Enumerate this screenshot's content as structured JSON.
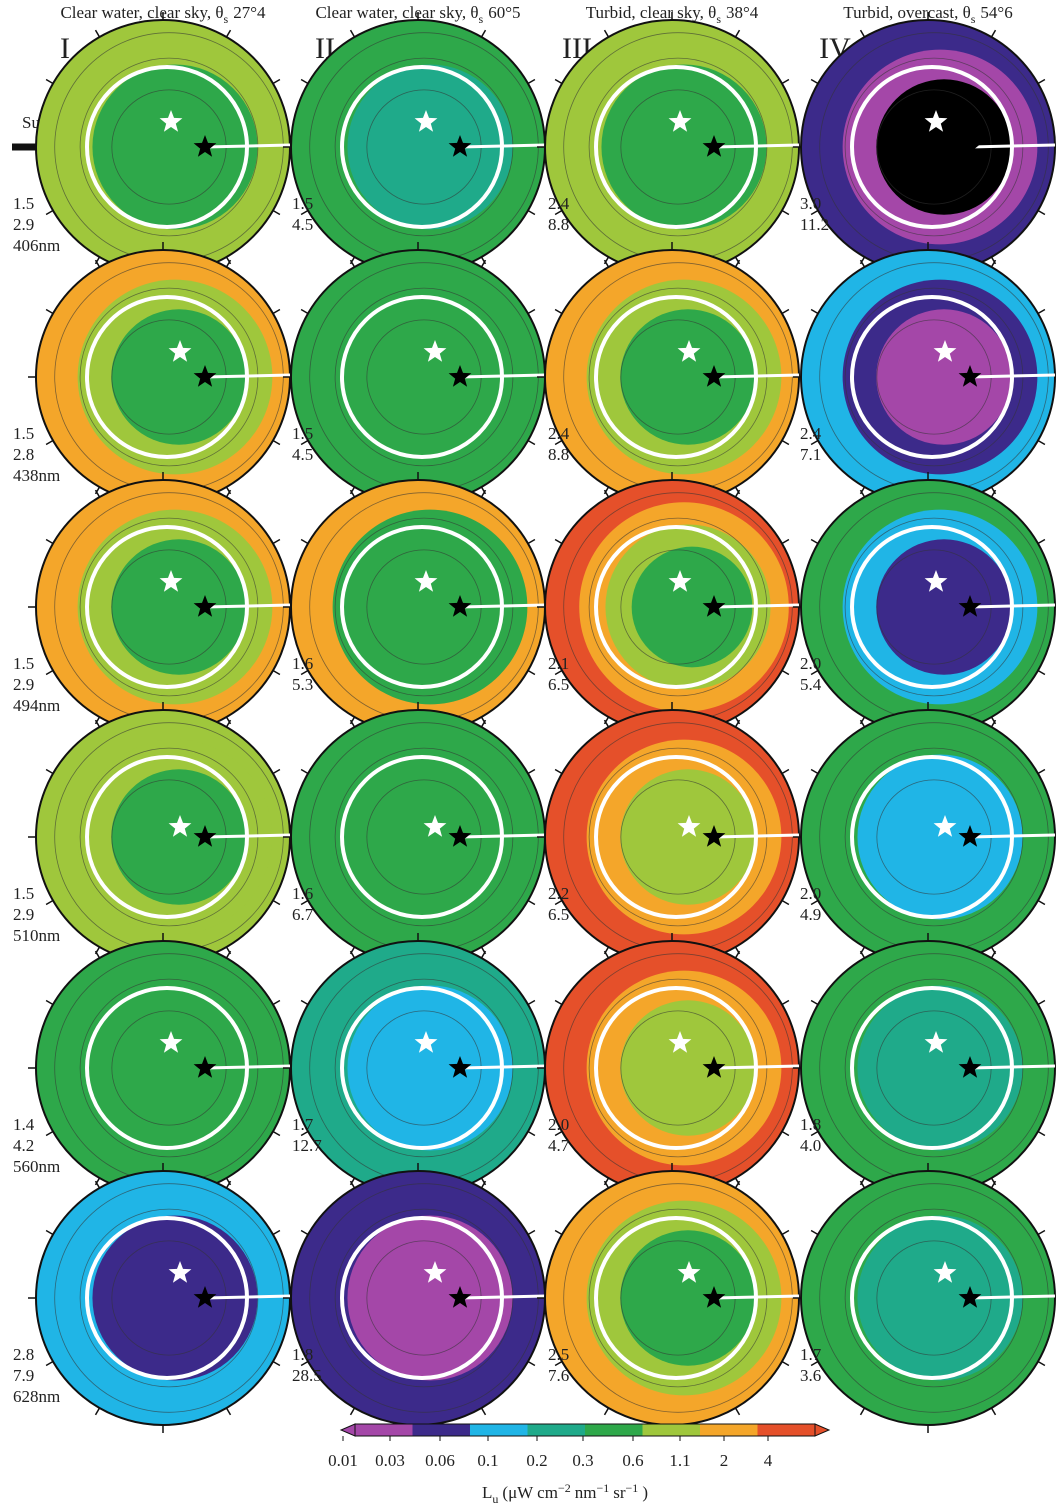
{
  "sun_label": "Sun",
  "wavelengths": [
    "406nm",
    "438nm",
    "494nm",
    "510nm",
    "560nm",
    "628nm"
  ],
  "columns": [
    {
      "numeral": "I",
      "title": {
        "pre": "Clear water, clear sky, θ",
        "sub": "s",
        "post": "27°4"
      },
      "panels": [
        {
          "values": [
            "1.5",
            "2.9"
          ],
          "colors": [
            "#9fc73c",
            "#2ea84a"
          ]
        },
        {
          "values": [
            "1.5",
            "2.8"
          ],
          "colors": [
            "#f4a62a",
            "#9fc73c",
            "#2ea84a"
          ]
        },
        {
          "values": [
            "1.5",
            "2.9"
          ],
          "colors": [
            "#f4a62a",
            "#9fc73c",
            "#2ea84a"
          ]
        },
        {
          "values": [
            "1.5",
            "2.9"
          ],
          "colors": [
            "#9fc73c",
            "#9fc73c",
            "#2ea84a"
          ]
        },
        {
          "values": [
            "1.4",
            "4.2"
          ],
          "colors": [
            "#2ea84a",
            "#2ea84a"
          ]
        },
        {
          "values": [
            "2.8",
            "7.9"
          ],
          "colors": [
            "#20b5e6",
            "#3c2a8a"
          ]
        }
      ]
    },
    {
      "numeral": "II",
      "title": {
        "pre": "Clear water, clear sky, θ",
        "sub": "s",
        "post": "60°5"
      },
      "panels": [
        {
          "values": [
            "1.5",
            "4.5"
          ],
          "colors": [
            "#2ea84a",
            "#1faa8a"
          ]
        },
        {
          "values": [
            "1.5",
            "4.5"
          ],
          "colors": [
            "#2ea84a",
            "#2ea84a"
          ]
        },
        {
          "values": [
            "1.6",
            "5.3"
          ],
          "colors": [
            "#f4a62a",
            "#2ea84a",
            "#2ea84a"
          ]
        },
        {
          "values": [
            "1.6",
            "6.7"
          ],
          "colors": [
            "#2ea84a",
            "#2ea84a"
          ]
        },
        {
          "values": [
            "1.7",
            "12.7"
          ],
          "colors": [
            "#1faa8a",
            "#20b5e6"
          ]
        },
        {
          "values": [
            "1.8",
            "28.5"
          ],
          "colors": [
            "#3c2a8a",
            "#a447a8"
          ]
        }
      ]
    },
    {
      "numeral": "III",
      "title": {
        "pre": "Turbid, clear sky, θ",
        "sub": "s",
        "post": "38°4"
      },
      "panels": [
        {
          "values": [
            "2.4",
            "8.8"
          ],
          "colors": [
            "#9fc73c",
            "#2ea84a"
          ]
        },
        {
          "values": [
            "2.4",
            "8.8"
          ],
          "colors": [
            "#f4a62a",
            "#9fc73c",
            "#2ea84a"
          ]
        },
        {
          "values": [
            "2.1",
            "6.5"
          ],
          "colors": [
            "#e5502a",
            "#f4a62a",
            "#9fc73c",
            "#2ea84a"
          ]
        },
        {
          "values": [
            "2.2",
            "6.5"
          ],
          "colors": [
            "#e5502a",
            "#f4a62a",
            "#9fc73c"
          ]
        },
        {
          "values": [
            "2.0",
            "4.7"
          ],
          "colors": [
            "#e5502a",
            "#f4a62a",
            "#9fc73c"
          ]
        },
        {
          "values": [
            "2.5",
            "7.6"
          ],
          "colors": [
            "#f4a62a",
            "#9fc73c",
            "#2ea84a"
          ]
        }
      ]
    },
    {
      "numeral": "IV",
      "title": {
        "pre": "Turbid, overcast, θ",
        "sub": "s",
        "post": "54°6"
      },
      "panels": [
        {
          "values": [
            "3.0",
            "11.2"
          ],
          "colors": [
            "#3c2a8a",
            "#a447a8",
            "#000000"
          ]
        },
        {
          "values": [
            "2.4",
            "7.1"
          ],
          "colors": [
            "#20b5e6",
            "#3c2a8a",
            "#a447a8"
          ]
        },
        {
          "values": [
            "2.0",
            "5.4"
          ],
          "colors": [
            "#2ea84a",
            "#20b5e6",
            "#3c2a8a"
          ]
        },
        {
          "values": [
            "2.0",
            "4.9"
          ],
          "colors": [
            "#2ea84a",
            "#20b5e6"
          ]
        },
        {
          "values": [
            "1.8",
            "4.0"
          ],
          "colors": [
            "#2ea84a",
            "#1faa8a"
          ]
        },
        {
          "values": [
            "1.7",
            "3.6"
          ],
          "colors": [
            "#2ea84a",
            "#1faa8a"
          ]
        }
      ]
    }
  ],
  "colorbar": {
    "ticks": [
      "0.01",
      "0.03",
      "0.06",
      "0.1",
      "0.2",
      "0.3",
      "0.6",
      "1.1",
      "2",
      "4"
    ],
    "colors": [
      "#a447a8",
      "#3c2a8a",
      "#20b5e6",
      "#1faa8a",
      "#2ea84a",
      "#9fc73c",
      "#f4a62a",
      "#e5502a"
    ],
    "label": [
      {
        "t": "L"
      },
      {
        "sub": "u"
      },
      {
        "t": "(μW cm"
      },
      {
        "sup": "−2"
      },
      {
        "t": "nm"
      },
      {
        "sup": "−1"
      },
      {
        "t": "sr"
      },
      {
        "sup": "−1"
      },
      {
        "t": ")"
      }
    ]
  }
}
